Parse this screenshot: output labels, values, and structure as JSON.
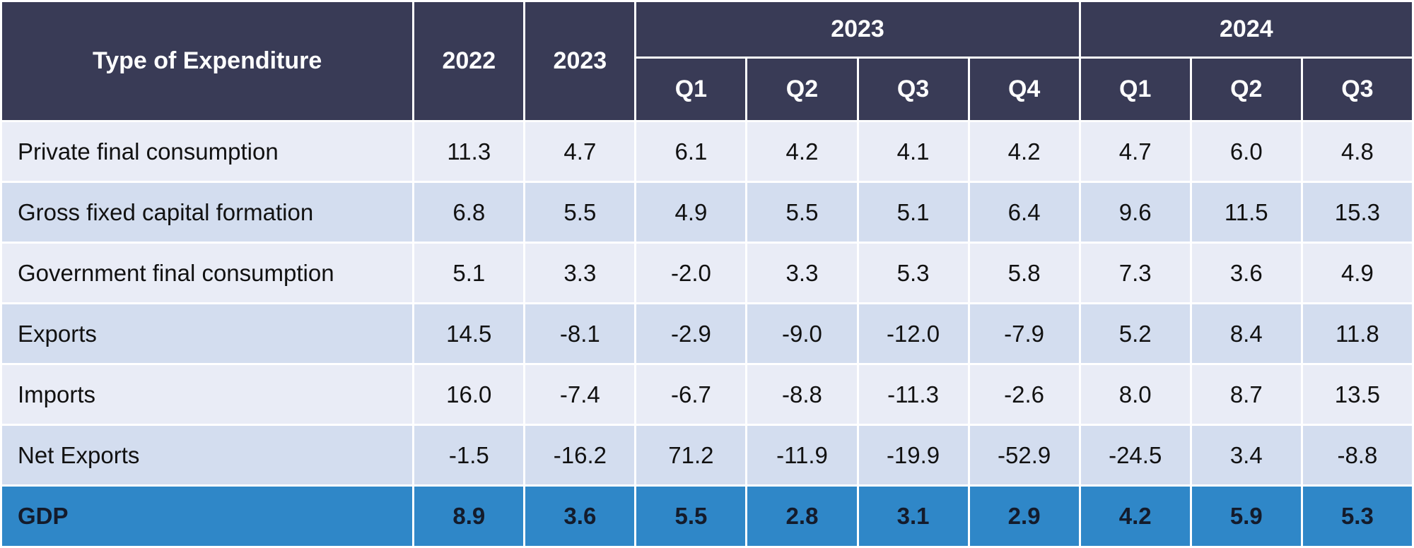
{
  "table": {
    "header": {
      "type_label": "Type of Expenditure",
      "annual_years": [
        "2022",
        "2023"
      ],
      "quarter_groups": [
        {
          "year": "2023",
          "quarters": [
            "Q1",
            "Q2",
            "Q3",
            "Q4"
          ]
        },
        {
          "year": "2024",
          "quarters": [
            "Q1",
            "Q2",
            "Q3"
          ]
        }
      ]
    },
    "rows": [
      {
        "label": "Private final consumption",
        "values": [
          "11.3",
          "4.7",
          "6.1",
          "4.2",
          "4.1",
          "4.2",
          "4.7",
          "6.0",
          "4.8"
        ]
      },
      {
        "label": "Gross fixed capital formation",
        "values": [
          "6.8",
          "5.5",
          "4.9",
          "5.5",
          "5.1",
          "6.4",
          "9.6",
          "11.5",
          "15.3"
        ]
      },
      {
        "label": "Government final consumption",
        "values": [
          "5.1",
          "3.3",
          "-2.0",
          "3.3",
          "5.3",
          "5.8",
          "7.3",
          "3.6",
          "4.9"
        ]
      },
      {
        "label": "Exports",
        "values": [
          "14.5",
          "-8.1",
          "-2.9",
          "-9.0",
          "-12.0",
          "-7.9",
          "5.2",
          "8.4",
          "11.8"
        ]
      },
      {
        "label": "Imports",
        "values": [
          "16.0",
          "-7.4",
          "-6.7",
          "-8.8",
          "-11.3",
          "-2.6",
          "8.0",
          "8.7",
          "13.5"
        ]
      },
      {
        "label": "Net Exports",
        "values": [
          "-1.5",
          "-16.2",
          "71.2",
          "-11.9",
          "-19.9",
          "-52.9",
          "-24.5",
          "3.4",
          "-8.8"
        ]
      },
      {
        "label": "GDP",
        "values": [
          "8.9",
          "3.6",
          "5.5",
          "2.8",
          "3.1",
          "2.9",
          "4.2",
          "5.9",
          "5.3"
        ]
      }
    ],
    "colors": {
      "header_bg": "#393b56",
      "row_light": "#e9ecf6",
      "row_alt": "#d3ddef",
      "gdp_bg": "#2f87c8"
    }
  }
}
